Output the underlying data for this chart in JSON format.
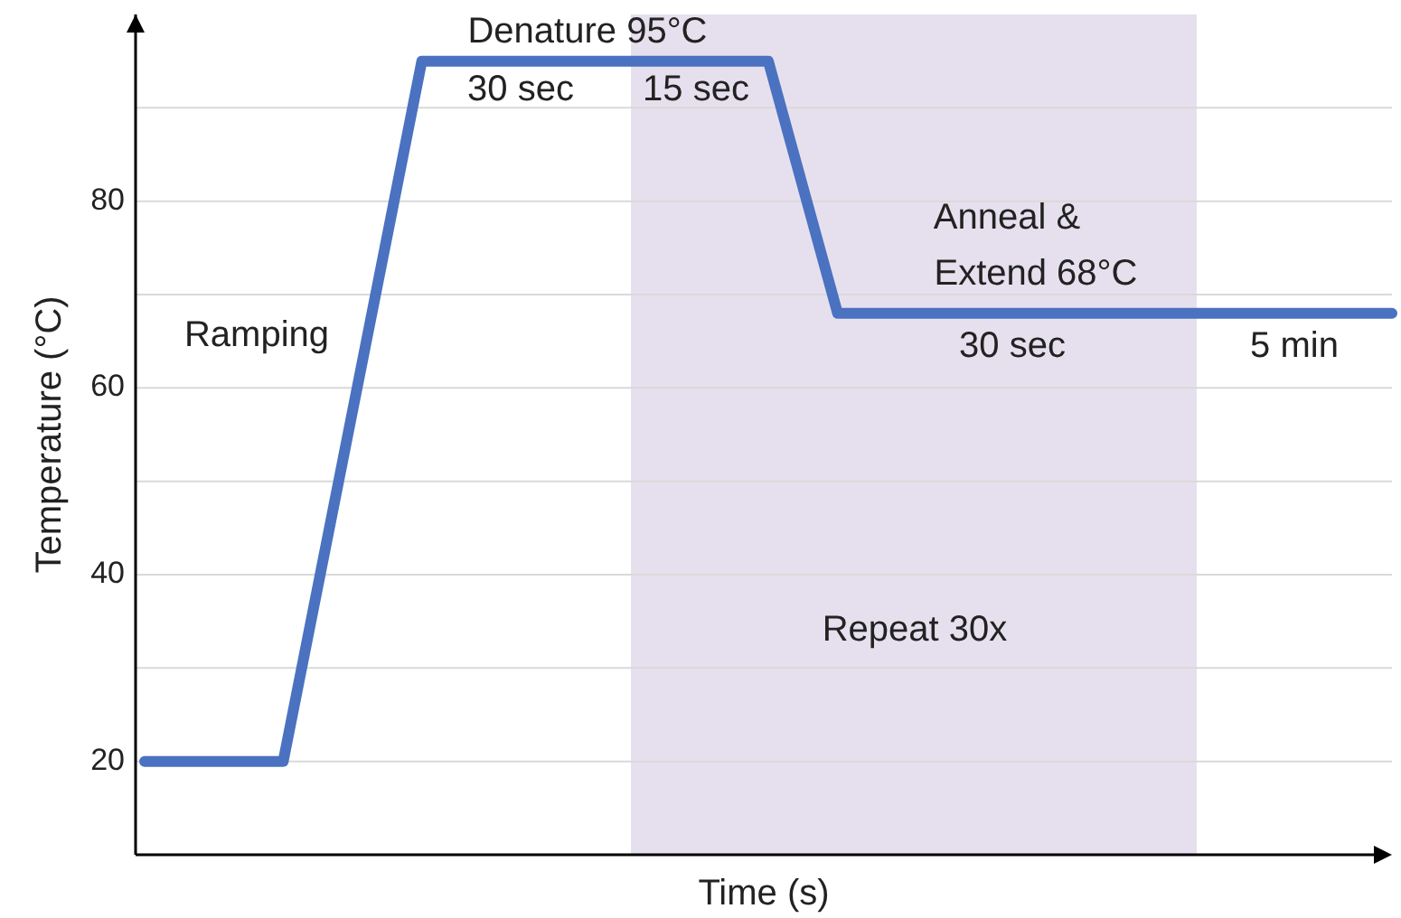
{
  "chart_data": {
    "type": "line",
    "xlabel": "Time (s)",
    "ylabel": "Temperature (°C)",
    "categories": [
      null,
      null,
      null,
      null,
      null,
      null,
      null,
      null,
      null,
      null,
      null,
      null,
      null,
      null,
      null,
      null,
      null,
      null,
      null
    ],
    "series": [
      {
        "color": "#4a72c0",
        "values": [
          20,
          20,
          20,
          57.5,
          95,
          95,
          95,
          95,
          95,
          95,
          68,
          68,
          68,
          68,
          68,
          68,
          68,
          68,
          68
        ]
      }
    ],
    "ylim": [
      10,
      100
    ],
    "yticks": [
      20,
      {
        "value": 30,
        "label": null
      },
      40,
      {
        "value": 50,
        "label": null
      },
      60,
      {
        "value": 70,
        "label": null
      },
      80,
      {
        "value": 90,
        "label": null
      }
    ],
    "tick_labels": "y",
    "grid": "y",
    "marker": "none",
    "line_style": "solid",
    "annotations": [
      "Denature 95°C",
      "30 sec",
      "15 sec",
      "Anneal &",
      "Extend 68°C",
      "30 sec",
      "5 min",
      "Ramping",
      "Repeat 30x"
    ]
  }
}
